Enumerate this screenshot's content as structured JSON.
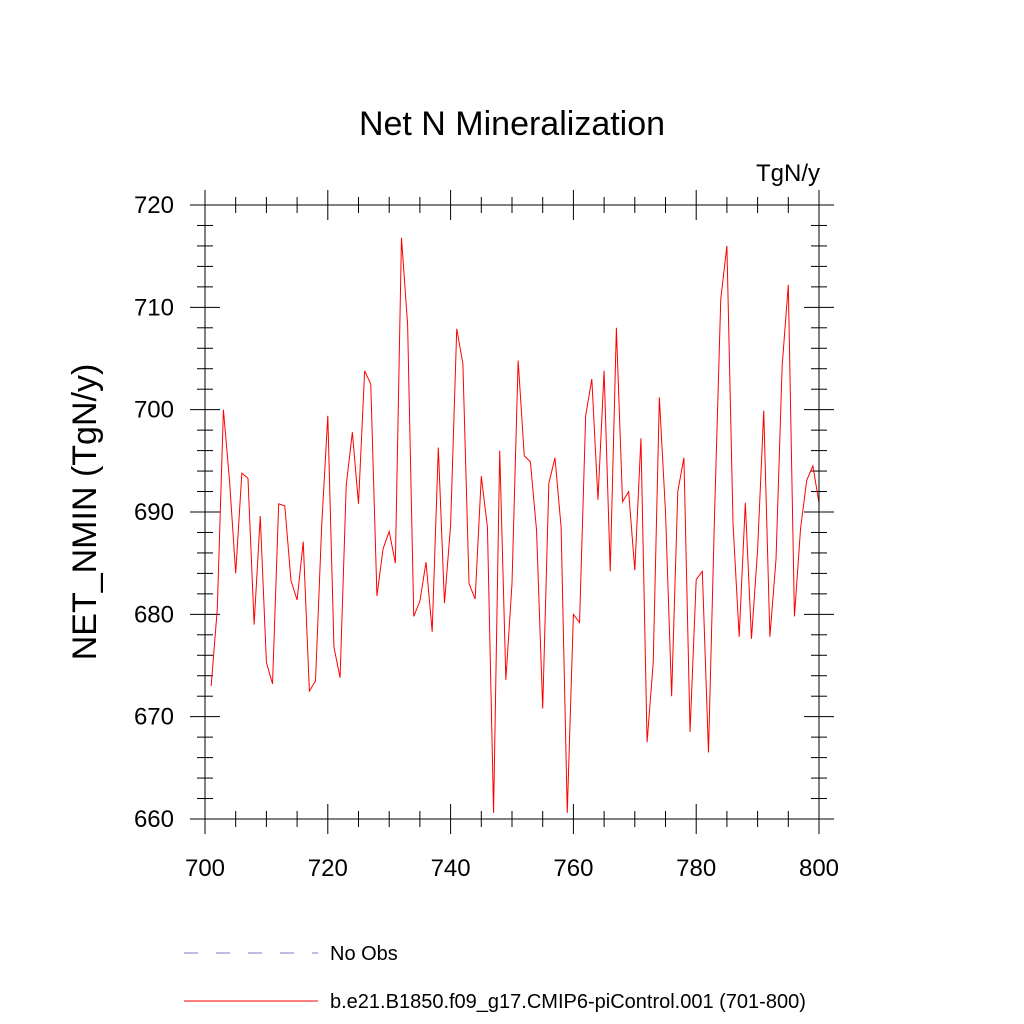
{
  "chart_data": {
    "type": "line",
    "title": "Net N Mineralization",
    "units_label": "TgN/y",
    "xlabel": "",
    "ylabel": "NET_NMIN  (TgN/y)",
    "xlim": [
      700,
      800
    ],
    "ylim": [
      660,
      720
    ],
    "x_ticks": [
      700,
      720,
      740,
      760,
      780,
      800
    ],
    "x_tick_labels": [
      "700",
      "720",
      "740",
      "760",
      "780",
      "800"
    ],
    "y_ticks": [
      660,
      670,
      680,
      690,
      700,
      710,
      720
    ],
    "y_tick_labels": [
      "660",
      "670",
      "680",
      "690",
      "700",
      "710",
      "720"
    ],
    "x_minor_step": 5,
    "y_minor_step": 2,
    "series": [
      {
        "name": "b.e21.B1850.f09_g17.CMIP6-piControl.001 (701-800)",
        "color": "#ff0000",
        "x": [
          701,
          702,
          703,
          704,
          705,
          706,
          707,
          708,
          709,
          710,
          711,
          712,
          713,
          714,
          715,
          716,
          717,
          718,
          719,
          720,
          721,
          722,
          723,
          724,
          725,
          726,
          727,
          728,
          729,
          730,
          731,
          732,
          733,
          734,
          735,
          736,
          737,
          738,
          739,
          740,
          741,
          742,
          743,
          744,
          745,
          746,
          747,
          748,
          749,
          750,
          751,
          752,
          753,
          754,
          755,
          756,
          757,
          758,
          759,
          760,
          761,
          762,
          763,
          764,
          765,
          766,
          767,
          768,
          769,
          770,
          771,
          772,
          773,
          774,
          775,
          776,
          777,
          778,
          779,
          780,
          781,
          782,
          783,
          784,
          785,
          786,
          787,
          788,
          789,
          790,
          791,
          792,
          793,
          794,
          795,
          796,
          797,
          798,
          799,
          800
        ],
        "values": [
          673,
          680.5,
          700,
          693,
          684,
          693.8,
          693.3,
          679,
          689.6,
          675.3,
          673.2,
          690.8,
          690.6,
          683.3,
          681.4,
          687.1,
          672.5,
          673.5,
          688.6,
          699.4,
          676.8,
          673.8,
          692.6,
          697.8,
          690.8,
          703.8,
          702.5,
          681.8,
          686.4,
          688.1,
          685,
          716.8,
          708.3,
          679.8,
          681.3,
          685.1,
          678.3,
          696.3,
          681.1,
          688.7,
          707.9,
          704.5,
          683,
          681.5,
          693.5,
          688.5,
          660.6,
          696,
          673.6,
          683,
          704.8,
          695.5,
          694.9,
          688.2,
          670.8,
          692.8,
          695.3,
          688.5,
          660.6,
          680,
          679.2,
          699.4,
          703,
          691.2,
          703.8,
          684.2,
          708,
          691,
          692,
          684.3,
          697.2,
          667.5,
          675.3,
          701.2,
          690,
          672,
          692,
          695.3,
          668.5,
          683.4,
          684.2,
          666.5,
          690,
          710.8,
          716,
          688.8,
          677.8,
          690.9,
          677.6,
          686.3,
          699.9,
          677.8,
          685.4,
          704.3,
          712.2,
          679.8,
          688.4,
          693.1,
          694.5,
          690.9
        ]
      }
    ],
    "legend": [
      {
        "label": "No Obs",
        "style": "dashed",
        "color": "#7a7ac8"
      },
      {
        "label": "b.e21.B1850.f09_g17.CMIP6-piControl.001 (701-800)",
        "style": "solid",
        "color": "#ff0000"
      }
    ],
    "legend_position": "bottom"
  }
}
